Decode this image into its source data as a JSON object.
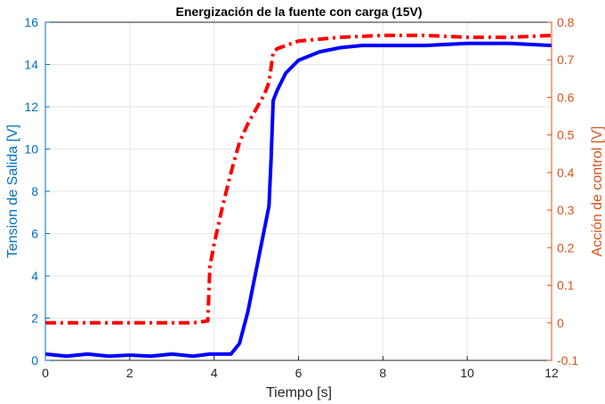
{
  "chart_data": {
    "type": "line",
    "title": "Energización de la fuente con carga (15V)",
    "xlabel": "Tiempo [s]",
    "ylabel_left": "Tension de Salida [V]",
    "ylabel_right": "Acción de control [V]",
    "xlim": [
      0,
      12
    ],
    "ylim_left": [
      0,
      16
    ],
    "ylim_right": [
      -0.1,
      0.8
    ],
    "grid": true,
    "x_ticks": [
      "0",
      "2",
      "4",
      "6",
      "8",
      "10",
      "12"
    ],
    "y_left_ticks": [
      "0",
      "2",
      "4",
      "6",
      "8",
      "10",
      "12",
      "14",
      "16"
    ],
    "y_right_ticks": [
      "-0.1",
      "0",
      "0.1",
      "0.2",
      "0.3",
      "0.4",
      "0.5",
      "0.6",
      "0.7",
      "0.8"
    ],
    "colors": {
      "left_axis": "#0072BD",
      "right_axis": "#D95319",
      "output_line": "#0000FF",
      "control_line": "#FF0000",
      "grid": "#E6E6E6",
      "axes_box": "#262626"
    },
    "series": [
      {
        "axis": "left",
        "style": "solid",
        "x": [
          0,
          0.5,
          1,
          1.5,
          2,
          2.5,
          3,
          3.5,
          3.9,
          4.2,
          4.4,
          4.6,
          4.8,
          5.0,
          5.2,
          5.3,
          5.35,
          5.4,
          5.5,
          5.7,
          6.0,
          6.5,
          7,
          7.5,
          8,
          9,
          10,
          11,
          12
        ],
        "y": [
          0.3,
          0.2,
          0.3,
          0.2,
          0.25,
          0.2,
          0.3,
          0.2,
          0.3,
          0.3,
          0.3,
          0.8,
          2.3,
          4.3,
          6.3,
          7.3,
          9.5,
          12.3,
          12.8,
          13.6,
          14.2,
          14.6,
          14.8,
          14.9,
          14.9,
          14.9,
          15.0,
          15.0,
          14.9
        ]
      },
      {
        "axis": "right",
        "style": "dashdot",
        "x": [
          0,
          0.5,
          1,
          1.5,
          2,
          2.5,
          3,
          3.5,
          3.85,
          3.9,
          4.0,
          4.2,
          4.4,
          4.6,
          4.8,
          5.0,
          5.2,
          5.3,
          5.4,
          5.5,
          6.0,
          6.5,
          7,
          8,
          9,
          10,
          11,
          12
        ],
        "y": [
          0.0,
          0.0,
          0.0,
          0.0,
          0.0,
          0.0,
          0.0,
          0.0,
          0.005,
          0.15,
          0.21,
          0.31,
          0.4,
          0.48,
          0.53,
          0.57,
          0.61,
          0.64,
          0.72,
          0.73,
          0.75,
          0.755,
          0.76,
          0.765,
          0.765,
          0.76,
          0.76,
          0.765
        ]
      }
    ]
  }
}
